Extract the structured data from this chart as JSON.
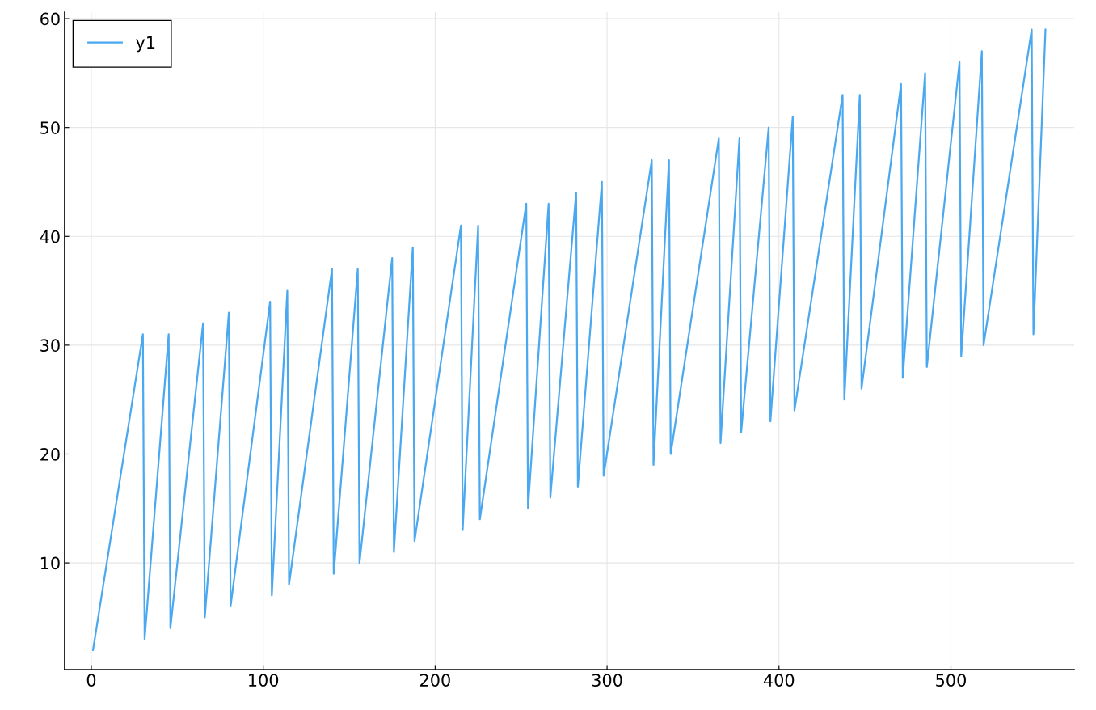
{
  "chart_data": {
    "type": "line",
    "xlim": [
      -15.5,
      571.7
    ],
    "ylim": [
      0.2,
      60.6
    ],
    "xticks": [
      0,
      100,
      200,
      300,
      400,
      500
    ],
    "yticks": [
      10,
      20,
      30,
      40,
      50,
      60
    ],
    "grid": true,
    "legend": "top left",
    "series": [
      {
        "name": "y1",
        "color": "#4aa8f0",
        "x": [
          1,
          30,
          31,
          45,
          46,
          65,
          66,
          80,
          81,
          104,
          105,
          114,
          115,
          140,
          141,
          155,
          156,
          175,
          176,
          187,
          188,
          215,
          216,
          225,
          226,
          253,
          254,
          266,
          267,
          282,
          283,
          297,
          298,
          326,
          327,
          336,
          337,
          365,
          366,
          377,
          378,
          394,
          395,
          408,
          409,
          437,
          438,
          447,
          448,
          471,
          472,
          485,
          486,
          505,
          506,
          518,
          519,
          547,
          548,
          555
        ],
        "values": [
          2,
          31,
          3,
          31,
          4,
          32,
          5,
          33,
          6,
          34,
          7,
          35,
          8,
          37,
          9,
          37,
          10,
          38,
          11,
          39,
          12,
          41,
          13,
          41,
          14,
          43,
          15,
          43,
          16,
          44,
          17,
          45,
          18,
          47,
          19,
          47,
          20,
          49,
          21,
          49,
          22,
          50,
          23,
          51,
          24,
          53,
          25,
          53,
          26,
          54,
          27,
          55,
          28,
          56,
          29,
          57,
          30,
          59,
          31,
          59
        ]
      }
    ]
  }
}
